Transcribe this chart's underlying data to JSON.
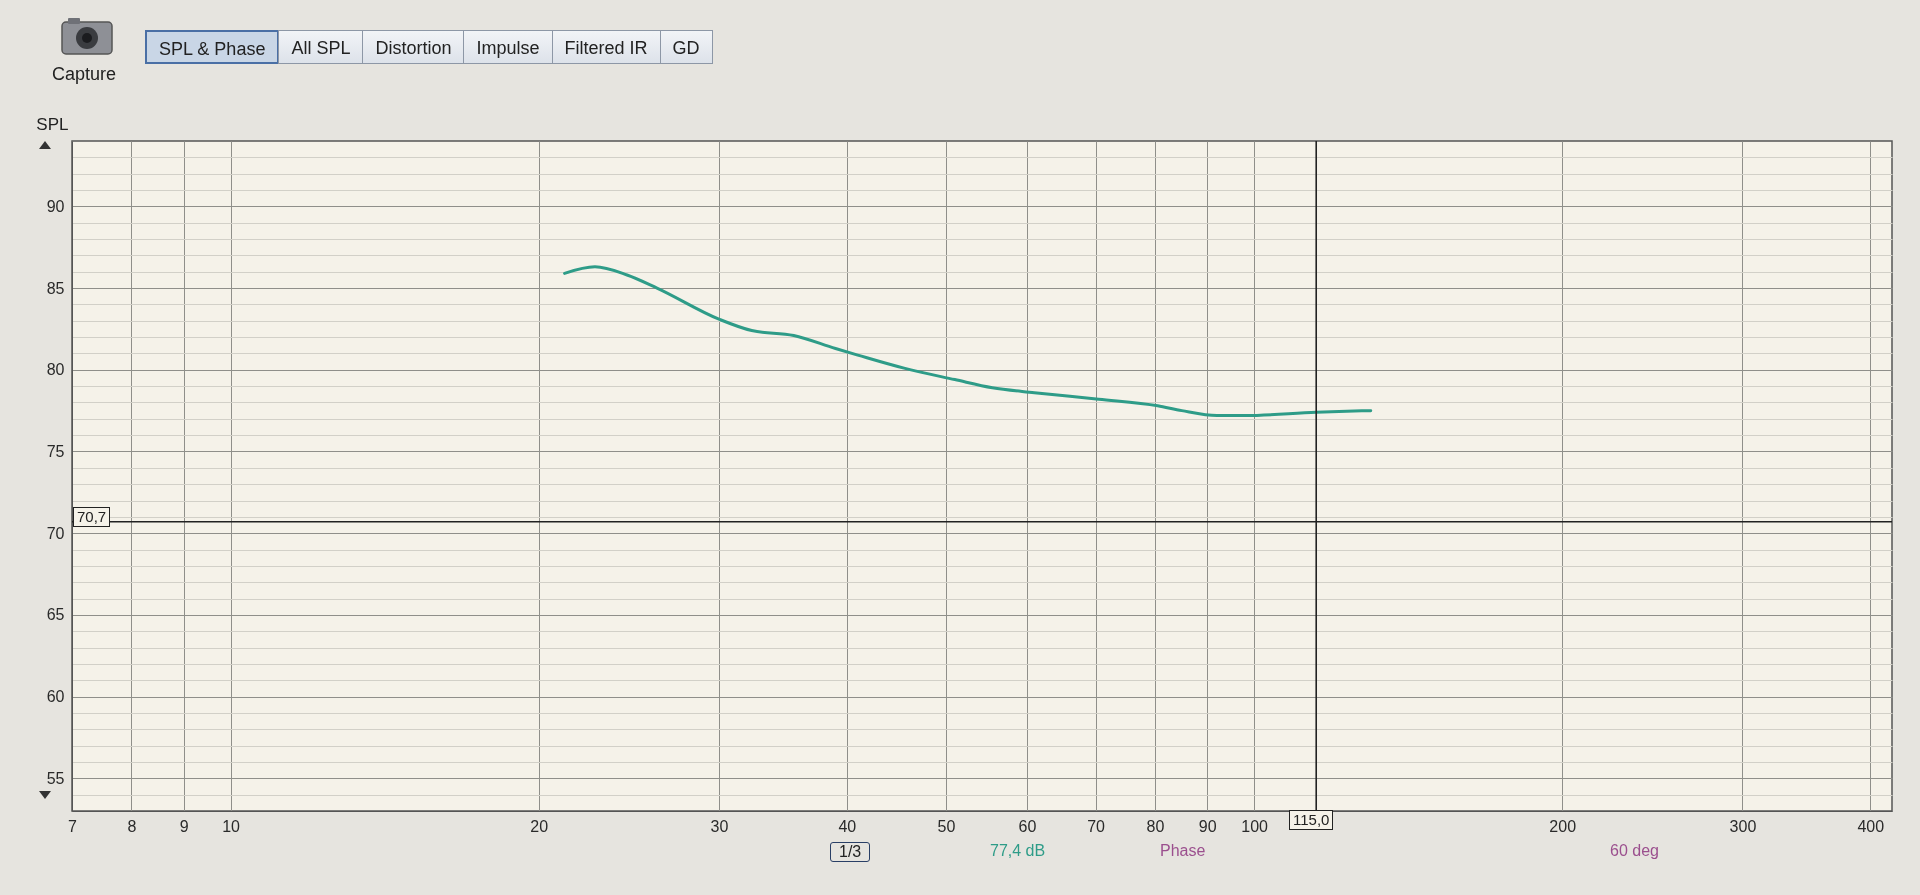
{
  "chart_data": {
    "type": "line",
    "ylabel": "SPL",
    "annotations": [
      "Capture",
      "SPL & Phase",
      "All SPL",
      "Distortion",
      "Impulse",
      "Filtered IR",
      "GD",
      "1/3",
      "77,4 dB",
      "Phase",
      "60 deg"
    ],
    "x": [
      21.2,
      22.7,
      24.4,
      26.1,
      30,
      32.3,
      35.5,
      39,
      41,
      45.5,
      51,
      55.5,
      61,
      70.5,
      80.5,
      85,
      92,
      98,
      115,
      130
    ],
    "series": [
      {
        "color": "#2e9c88",
        "values": [
          85.9,
          86.3,
          85.8,
          85.0,
          83.1,
          82.4,
          82.1,
          81.3,
          80.9,
          80.1,
          79.4,
          78.9,
          78.6,
          78.2,
          77.8,
          77.5,
          77.2,
          77.2,
          77.4,
          77.5
        ]
      }
    ],
    "xlim": [
      7,
      420
    ],
    "ylim": [
      53,
      94
    ],
    "xticks": [
      7,
      8,
      9,
      10,
      20,
      30,
      40,
      50,
      60,
      70,
      80,
      90,
      100,
      200,
      300,
      400
    ],
    "yticks": [
      {
        "value": 54,
        "label": null
      },
      55,
      {
        "value": 56,
        "label": null
      },
      {
        "value": 57,
        "label": null
      },
      {
        "value": 58,
        "label": null
      },
      {
        "value": 59,
        "label": null
      },
      60,
      {
        "value": 61,
        "label": null
      },
      {
        "value": 62,
        "label": null
      },
      {
        "value": 63,
        "label": null
      },
      {
        "value": 64,
        "label": null
      },
      65,
      {
        "value": 66,
        "label": null
      },
      {
        "value": 67,
        "label": null
      },
      {
        "value": 68,
        "label": null
      },
      {
        "value": 69,
        "label": null
      },
      70,
      {
        "value": 71,
        "label": null
      },
      {
        "value": 72,
        "label": null
      },
      {
        "value": 73,
        "label": null
      },
      {
        "value": 74,
        "label": null
      },
      75,
      {
        "value": 76,
        "label": null
      },
      {
        "value": 77,
        "label": null
      },
      {
        "value": 78,
        "label": null
      },
      {
        "value": 79,
        "label": null
      },
      80,
      {
        "value": 81,
        "label": null
      },
      {
        "value": 82,
        "label": null
      },
      {
        "value": 83,
        "label": null
      },
      {
        "value": 84,
        "label": null
      },
      85,
      {
        "value": 86,
        "label": null
      },
      {
        "value": 87,
        "label": null
      },
      {
        "value": 88,
        "label": null
      },
      {
        "value": 89,
        "label": null
      },
      90,
      {
        "value": 91,
        "label": null
      },
      {
        "value": 92,
        "label": null
      },
      {
        "value": 93,
        "label": null
      }
    ],
    "log": "x",
    "grid": true,
    "ref_lines": [
      {
        "axis": "y",
        "value": 70.7,
        "label": "70,7",
        "color": "#222222"
      },
      {
        "axis": "x",
        "value": 115,
        "label": "115,0",
        "color": "#222222"
      }
    ]
  }
}
